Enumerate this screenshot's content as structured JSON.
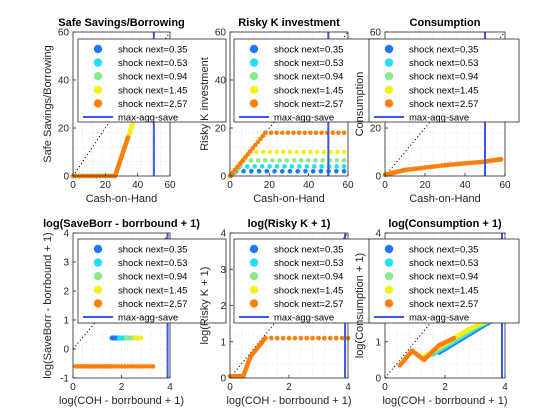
{
  "figure": {
    "marker_colors": [
      "#1f77ff",
      "#22e0ee",
      "#8ee88e",
      "#f2f21a",
      "#ff7f0e"
    ],
    "max_line_color": "#3b55e6"
  },
  "chart_data": [
    {
      "type": "scatter",
      "title": "Safe Savings/Borrowing",
      "xlabel": "Cash-on-Hand",
      "ylabel": "Safe Savings/Borrowing",
      "xlim": [
        0,
        60
      ],
      "ylim": [
        0,
        60
      ],
      "xticks": [
        "0",
        "20",
        "40",
        "60"
      ],
      "yticks": [
        "0",
        "20",
        "40",
        "60"
      ],
      "grid": "minor-dotted",
      "legend_position": "top",
      "legend": [
        "shock next=0.35",
        "shock next=0.53",
        "shock next=0.94",
        "shock next=1.45",
        "shock next=2.57",
        "max-agg-save"
      ],
      "max_agg_save_x": 50,
      "series": [
        {
          "name": "shock next=0.35",
          "x": [
            0,
            26,
            40,
            46
          ],
          "y": [
            0,
            0,
            28,
            40
          ]
        },
        {
          "name": "shock next=0.53",
          "x": [
            0,
            26,
            37,
            43
          ],
          "y": [
            0,
            0,
            22,
            34
          ]
        },
        {
          "name": "shock next=0.94",
          "x": [
            0,
            26,
            34,
            40
          ],
          "y": [
            0,
            0,
            16,
            28
          ]
        },
        {
          "name": "shock next=1.45",
          "x": [
            0,
            26,
            31,
            37
          ],
          "y": [
            0,
            0,
            10,
            22
          ]
        },
        {
          "name": "shock next=2.57",
          "x": [
            0,
            26,
            29,
            34
          ],
          "y": [
            0,
            0,
            6,
            16
          ]
        }
      ]
    },
    {
      "type": "scatter",
      "title": "Risky K investment",
      "xlabel": "Cash-on-Hand",
      "ylabel": "Risky K investment",
      "xlim": [
        0,
        60
      ],
      "ylim": [
        0,
        60
      ],
      "xticks": [
        "0",
        "20",
        "40",
        "60"
      ],
      "yticks": [
        "0",
        "20",
        "40",
        "60"
      ],
      "grid": "minor-dotted",
      "legend_position": "top",
      "legend": [
        "shock next=0.35",
        "shock next=0.53",
        "shock next=0.94",
        "shock next=1.45",
        "shock next=2.57",
        "max-agg-save"
      ],
      "max_agg_save_x": 50,
      "series": [
        {
          "name": "shock next=0.35",
          "x": [
            0,
            3,
            58
          ],
          "y": [
            0,
            2,
            2
          ]
        },
        {
          "name": "shock next=0.53",
          "x": [
            0,
            5,
            58
          ],
          "y": [
            0,
            4,
            4
          ]
        },
        {
          "name": "shock next=0.94",
          "x": [
            0,
            7,
            58
          ],
          "y": [
            0,
            6.5,
            6.5
          ]
        },
        {
          "name": "shock next=1.45",
          "x": [
            0,
            10,
            58
          ],
          "y": [
            0,
            10,
            10
          ]
        },
        {
          "name": "shock next=2.57",
          "x": [
            0,
            18,
            58
          ],
          "y": [
            0,
            18,
            18
          ]
        }
      ]
    },
    {
      "type": "scatter",
      "title": "Consumption",
      "xlabel": "Cash-on-Hand",
      "ylabel": "Consumption",
      "xlim": [
        0,
        60
      ],
      "ylim": [
        0,
        60
      ],
      "xticks": [
        "0",
        "20",
        "40",
        "60"
      ],
      "yticks": [
        "0",
        "20",
        "40",
        "60"
      ],
      "grid": "minor-dotted",
      "legend_position": "top",
      "legend": [
        "shock next=0.35",
        "shock next=0.53",
        "shock next=0.94",
        "shock next=1.45",
        "shock next=2.57",
        "max-agg-save"
      ],
      "max_agg_save_x": 50,
      "series": [
        {
          "name": "shock next=0.35",
          "x": [
            0,
            10,
            30,
            50,
            58
          ],
          "y": [
            0.5,
            2.5,
            4.5,
            6,
            7
          ]
        },
        {
          "name": "shock next=0.53",
          "x": [
            0,
            10,
            30,
            50,
            58
          ],
          "y": [
            0.5,
            2.5,
            4.5,
            6,
            7
          ]
        },
        {
          "name": "shock next=0.94",
          "x": [
            0,
            10,
            30,
            50,
            58
          ],
          "y": [
            0.5,
            2.5,
            4.5,
            6,
            7
          ]
        },
        {
          "name": "shock next=1.45",
          "x": [
            0,
            10,
            30,
            50,
            58
          ],
          "y": [
            0.5,
            2.5,
            4.5,
            6,
            7
          ]
        },
        {
          "name": "shock next=2.57",
          "x": [
            0,
            10,
            30,
            50,
            58
          ],
          "y": [
            0.5,
            2.5,
            4.5,
            6,
            7
          ]
        }
      ]
    },
    {
      "type": "scatter",
      "title": "log(SaveBorr - borrbound + 1)",
      "xlabel": "log(COH - borrbound + 1)",
      "ylabel": "log(SaveBorr - borrbound + 1)",
      "xlim": [
        0,
        4
      ],
      "ylim": [
        -1,
        4
      ],
      "xticks": [
        "0",
        "2",
        "4"
      ],
      "yticks": [
        "-1",
        "0",
        "1",
        "2",
        "3",
        "4"
      ],
      "grid": "minor-dotted",
      "legend_position": "top",
      "legend": [
        "shock next=0.35",
        "shock next=0.53",
        "shock next=0.94",
        "shock next=1.45",
        "shock next=2.57",
        "max-agg-save"
      ],
      "max_agg_save_x": 3.9,
      "series": [
        {
          "name": "shock next=0.35",
          "x": [
            1.6,
            1.8,
            2.0
          ],
          "y": [
            0.38,
            0.38,
            0.38
          ]
        },
        {
          "name": "shock next=0.53",
          "x": [
            1.9,
            2.1,
            2.2
          ],
          "y": [
            0.38,
            0.38,
            0.38
          ]
        },
        {
          "name": "shock next=0.94",
          "x": [
            2.2,
            2.35,
            2.5
          ],
          "y": [
            0.38,
            0.38,
            0.38
          ]
        },
        {
          "name": "shock next=1.45",
          "x": [
            2.55,
            2.7,
            2.8
          ],
          "y": [
            0.38,
            0.38,
            0.38
          ]
        },
        {
          "name": "shock next=2.57",
          "x": [
            0.1,
            1.5,
            3.3
          ],
          "y": [
            -0.6,
            -0.6,
            -0.6
          ]
        }
      ]
    },
    {
      "type": "scatter",
      "title": "log(Risky K + 1)",
      "xlabel": "log(COH - borrbound + 1)",
      "ylabel": "log(Risky K + 1)",
      "xlim": [
        0,
        4
      ],
      "ylim": [
        0,
        4
      ],
      "xticks": [
        "0",
        "2",
        "4"
      ],
      "yticks": [
        "0",
        "1",
        "2",
        "3",
        "4"
      ],
      "grid": "minor-dotted",
      "legend_position": "top",
      "legend": [
        "shock next=0.35",
        "shock next=0.53",
        "shock next=0.94",
        "shock next=1.45",
        "shock next=2.57",
        "max-agg-save"
      ],
      "max_agg_save_x": 3.9,
      "series": [
        {
          "name": "shock next=0.35",
          "x": [
            1.2,
            4.0
          ],
          "y": [
            1.1,
            1.1
          ]
        },
        {
          "name": "shock next=0.53",
          "x": [
            1.2,
            4.0
          ],
          "y": [
            1.1,
            1.1
          ]
        },
        {
          "name": "shock next=0.94",
          "x": [
            1.2,
            4.0
          ],
          "y": [
            1.1,
            1.1
          ]
        },
        {
          "name": "shock next=1.45",
          "x": [
            1.2,
            4.0
          ],
          "y": [
            1.1,
            1.1
          ]
        },
        {
          "name": "shock next=2.57",
          "x": [
            0.0,
            0.45,
            0.7,
            1.2,
            4.0
          ],
          "y": [
            0.05,
            0.05,
            0.6,
            1.1,
            1.1
          ]
        }
      ]
    },
    {
      "type": "scatter",
      "title": "log(Consumption + 1)",
      "xlabel": "log(COH - borrbound + 1)",
      "ylabel": "log(Consumption + 1)",
      "xlim": [
        0,
        4
      ],
      "ylim": [
        0,
        4
      ],
      "xticks": [
        "0",
        "2",
        "4"
      ],
      "yticks": [
        "0",
        "1",
        "2",
        "3",
        "4"
      ],
      "grid": "minor-dotted",
      "legend_position": "top",
      "legend": [
        "shock next=0.35",
        "shock next=0.53",
        "shock next=0.94",
        "shock next=1.45",
        "shock next=2.57",
        "max-agg-save"
      ],
      "max_agg_save_x": 3.9,
      "series": [
        {
          "name": "shock next=0.35",
          "x": [
            1.8,
            2.6,
            3.4,
            3.9
          ],
          "y": [
            0.7,
            1.1,
            1.5,
            1.75
          ]
        },
        {
          "name": "shock next=0.53",
          "x": [
            1.6,
            2.4,
            3.2,
            3.9
          ],
          "y": [
            0.65,
            1.05,
            1.45,
            1.75
          ]
        },
        {
          "name": "shock next=0.94",
          "x": [
            1.4,
            2.2,
            3.0,
            3.9
          ],
          "y": [
            0.6,
            1.0,
            1.4,
            1.75
          ]
        },
        {
          "name": "shock next=1.45",
          "x": [
            1.2,
            2.0,
            2.8,
            3.9
          ],
          "y": [
            0.55,
            0.95,
            1.35,
            1.75
          ]
        },
        {
          "name": "shock next=2.57",
          "x": [
            0.5,
            0.9,
            1.3,
            1.8,
            2.3
          ],
          "y": [
            0.35,
            0.75,
            0.5,
            0.9,
            1.1
          ]
        }
      ]
    }
  ]
}
